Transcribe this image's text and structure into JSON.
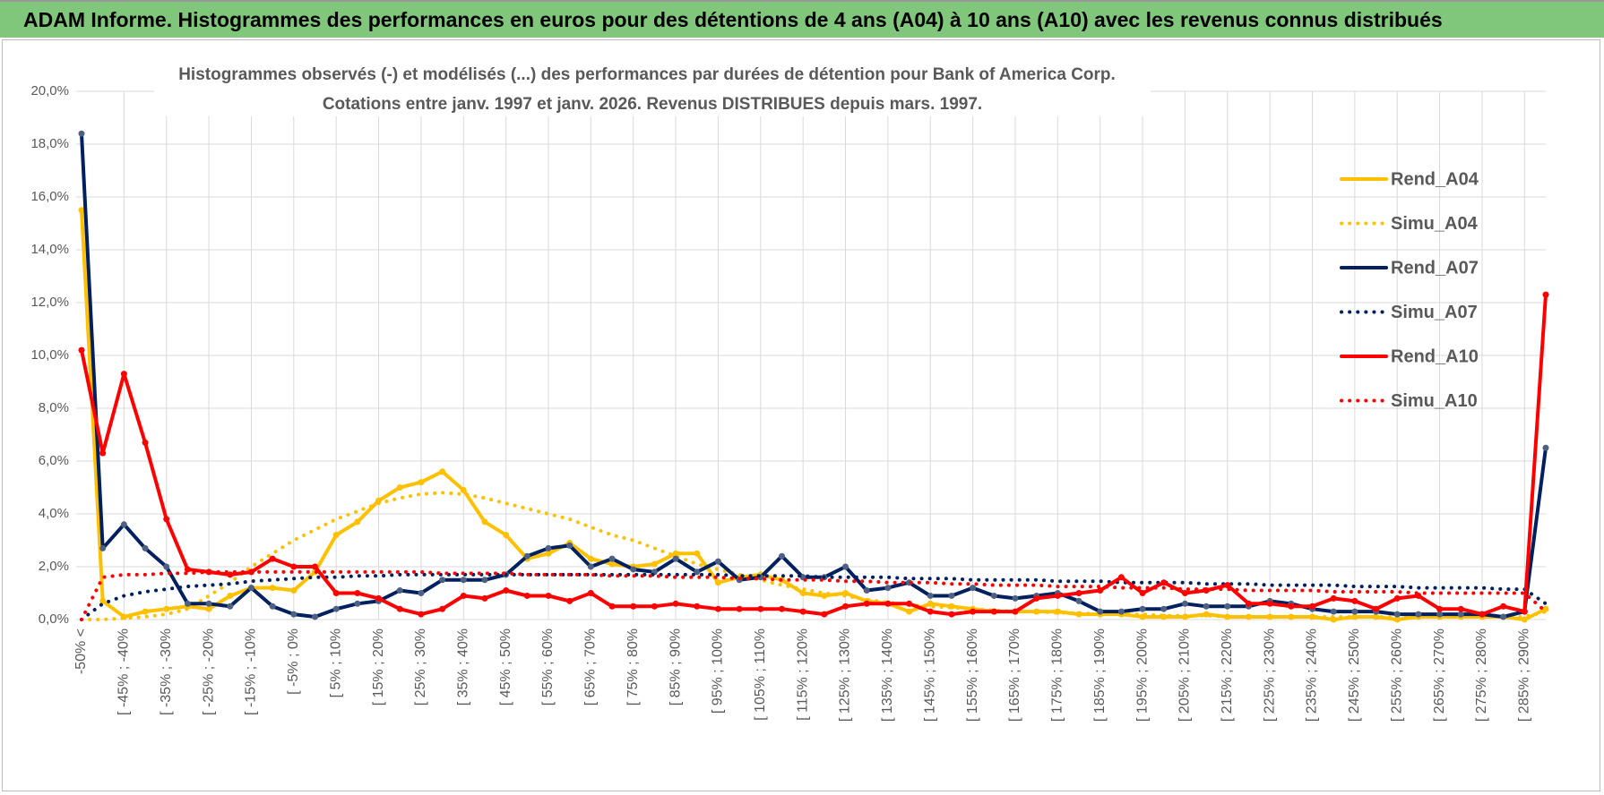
{
  "header": {
    "title": "ADAM Informe. Histogrammes des performances en euros pour des détentions de 4 ans (A04) à 10 ans (A10) avec les revenus connus distribués"
  },
  "chart_data": {
    "type": "line",
    "title": "Histogrammes observés (-) et modélisés (...) des performances par durées de détention pour Bank of America Corp.",
    "subtitle": "Cotations entre janv. 1997 et janv. 2026. Revenus DISTRIBUES depuis mars. 1997.",
    "categories": [
      "-50% <",
      null,
      "[ -45% ; -40%",
      null,
      "[ -35% ; -30%",
      null,
      "[ -25% ; -20%",
      null,
      "[ -15% ; -10%",
      null,
      "[ -5% ; 0%",
      null,
      "[ 5% ; 10%",
      null,
      "[ 15% ; 20%",
      null,
      "[ 25% ; 30%",
      null,
      "[ 35% ; 40%",
      null,
      "[ 45% ; 50%",
      null,
      "[ 55% ; 60%",
      null,
      "[ 65% ; 70%",
      null,
      "[ 75% ; 80%",
      null,
      "[ 85% ; 90%",
      null,
      "[ 95% ; 100%",
      null,
      "[ 105% ; 110%",
      null,
      "[ 115% ; 120%",
      null,
      "[ 125% ; 130%",
      null,
      "[ 135% ; 140%",
      null,
      "[ 145% ; 150%",
      null,
      "[ 155% ; 160%",
      null,
      "[ 165% ; 170%",
      null,
      "[ 175% ; 180%",
      null,
      "[ 185% ; 190%",
      null,
      "[ 195% ; 200%",
      null,
      "[ 205% ; 210%",
      null,
      "[ 215% ; 220%",
      null,
      "[ 225% ; 230%",
      null,
      "[ 235% ; 240%",
      null,
      "[ 245% ; 250%",
      null,
      "[ 255% ; 260%",
      null,
      "[ 265% ; 270%",
      null,
      "[ 275% ; 280%",
      null,
      "[ 285% ; 290%",
      null
    ],
    "ylim": [
      0,
      20
    ],
    "yticks": [
      {
        "value": 0,
        "label": "0,0%"
      },
      {
        "value": 2,
        "label": "2,0%"
      },
      {
        "value": 4,
        "label": "4,0%"
      },
      {
        "value": 6,
        "label": "6,0%"
      },
      {
        "value": 8,
        "label": "8,0%"
      },
      {
        "value": 10,
        "label": "10,0%"
      },
      {
        "value": 12,
        "label": "12,0%"
      },
      {
        "value": 14,
        "label": "14,0%"
      },
      {
        "value": 16,
        "label": "16,0%"
      },
      {
        "value": 18,
        "label": "18,0%"
      },
      {
        "value": 20,
        "label": "20,0%"
      }
    ],
    "grid": true,
    "legend": "right",
    "series": [
      {
        "name": "Rend_A04",
        "color": "#ffc000",
        "line_style": "solid",
        "values": [
          15.5,
          0.7,
          0.1,
          0.3,
          0.4,
          0.5,
          0.4,
          0.9,
          1.2,
          1.2,
          1.1,
          1.8,
          3.2,
          3.7,
          4.5,
          5.0,
          5.2,
          5.6,
          4.9,
          3.7,
          3.2,
          2.3,
          2.5,
          2.9,
          2.3,
          2.1,
          2.0,
          2.1,
          2.5,
          2.5,
          1.4,
          1.6,
          1.7,
          1.5,
          1.0,
          0.9,
          1.0,
          0.7,
          0.6,
          0.3,
          0.6,
          0.5,
          0.4,
          0.3,
          0.3,
          0.3,
          0.3,
          0.2,
          0.2,
          0.2,
          0.1,
          0.1,
          0.1,
          0.2,
          0.1,
          0.1,
          0.1,
          0.1,
          0.1,
          0.0,
          0.1,
          0.1,
          0.0,
          0.1,
          0.1,
          0.1,
          0.1,
          0.1,
          0.0,
          0.4
        ]
      },
      {
        "name": "Simu_A04",
        "color": "#ffc000",
        "line_style": "dotted",
        "values": [
          0,
          0,
          0.05,
          0.1,
          0.2,
          0.4,
          0.9,
          1.4,
          2.0,
          2.5,
          3.0,
          3.4,
          3.8,
          4.1,
          4.4,
          4.6,
          4.75,
          4.8,
          4.75,
          4.6,
          4.4,
          4.2,
          4.0,
          3.8,
          3.5,
          3.2,
          3.0,
          2.7,
          2.4,
          2.1,
          1.9,
          1.7,
          1.5,
          1.3,
          1.15,
          1.0,
          0.9,
          0.75,
          0.65,
          0.55,
          0.5,
          0.45,
          0.4,
          0.35,
          0.3,
          0.3,
          0.25,
          0.25,
          0.2,
          0.2,
          0.2,
          0.15,
          0.15,
          0.15,
          0.1,
          0.1,
          0.1,
          0.1,
          0.1,
          0.1,
          0.1,
          0.1,
          0.1,
          0.1,
          0.1,
          0.1,
          0.1,
          0.1,
          0.1,
          0.3
        ]
      },
      {
        "name": "Rend_A07",
        "color": "#002060",
        "line_style": "solid",
        "values": [
          18.4,
          2.7,
          3.6,
          2.7,
          2.0,
          0.6,
          0.6,
          0.5,
          1.2,
          0.5,
          0.2,
          0.1,
          0.4,
          0.6,
          0.7,
          1.1,
          1.0,
          1.5,
          1.5,
          1.5,
          1.7,
          2.4,
          2.7,
          2.8,
          2.0,
          2.3,
          1.9,
          1.8,
          2.3,
          1.8,
          2.2,
          1.5,
          1.6,
          2.4,
          1.6,
          1.6,
          2.0,
          1.1,
          1.2,
          1.4,
          0.9,
          0.9,
          1.2,
          0.9,
          0.8,
          0.9,
          1.0,
          0.7,
          0.3,
          0.3,
          0.4,
          0.4,
          0.6,
          0.5,
          0.5,
          0.5,
          0.7,
          0.6,
          0.4,
          0.3,
          0.3,
          0.3,
          0.2,
          0.2,
          0.2,
          0.2,
          0.2,
          0.1,
          0.3,
          6.5
        ]
      },
      {
        "name": "Simu_A07",
        "color": "#002060",
        "line_style": "dotted",
        "values": [
          0,
          0.6,
          0.9,
          1.05,
          1.15,
          1.25,
          1.3,
          1.35,
          1.45,
          1.5,
          1.55,
          1.6,
          1.6,
          1.65,
          1.65,
          1.7,
          1.7,
          1.7,
          1.7,
          1.7,
          1.7,
          1.7,
          1.7,
          1.7,
          1.7,
          1.7,
          1.7,
          1.7,
          1.7,
          1.7,
          1.7,
          1.65,
          1.65,
          1.65,
          1.65,
          1.6,
          1.6,
          1.6,
          1.6,
          1.55,
          1.55,
          1.55,
          1.5,
          1.5,
          1.5,
          1.5,
          1.45,
          1.45,
          1.45,
          1.4,
          1.4,
          1.4,
          1.4,
          1.35,
          1.35,
          1.35,
          1.3,
          1.3,
          1.3,
          1.3,
          1.25,
          1.25,
          1.25,
          1.2,
          1.2,
          1.2,
          1.2,
          1.15,
          1.15,
          0.6
        ]
      },
      {
        "name": "Rend_A10",
        "color": "#ff0000",
        "line_style": "solid",
        "values": [
          10.2,
          6.3,
          9.3,
          6.7,
          3.8,
          1.9,
          1.8,
          1.7,
          1.8,
          2.3,
          2.0,
          2.0,
          1.0,
          1.0,
          0.8,
          0.4,
          0.2,
          0.4,
          0.9,
          0.8,
          1.1,
          0.9,
          0.9,
          0.7,
          1.0,
          0.5,
          0.5,
          0.5,
          0.6,
          0.5,
          0.4,
          0.4,
          0.4,
          0.4,
          0.3,
          0.2,
          0.5,
          0.6,
          0.6,
          0.6,
          0.3,
          0.2,
          0.3,
          0.3,
          0.3,
          0.8,
          0.9,
          1.0,
          1.1,
          1.6,
          1.0,
          1.4,
          1.0,
          1.1,
          1.3,
          0.6,
          0.6,
          0.5,
          0.5,
          0.8,
          0.7,
          0.4,
          0.8,
          0.9,
          0.4,
          0.4,
          0.2,
          0.5,
          0.3,
          12.3
        ]
      },
      {
        "name": "Simu_A10",
        "color": "#ff0000",
        "line_style": "dotted",
        "values": [
          0,
          1.6,
          1.7,
          1.7,
          1.75,
          1.75,
          1.8,
          1.8,
          1.8,
          1.8,
          1.8,
          1.8,
          1.8,
          1.8,
          1.8,
          1.8,
          1.8,
          1.75,
          1.75,
          1.75,
          1.75,
          1.7,
          1.7,
          1.7,
          1.7,
          1.65,
          1.65,
          1.65,
          1.6,
          1.6,
          1.6,
          1.55,
          1.55,
          1.5,
          1.5,
          1.5,
          1.45,
          1.45,
          1.4,
          1.4,
          1.4,
          1.35,
          1.35,
          1.3,
          1.3,
          1.3,
          1.25,
          1.25,
          1.25,
          1.2,
          1.2,
          1.2,
          1.15,
          1.15,
          1.15,
          1.1,
          1.1,
          1.1,
          1.1,
          1.05,
          1.05,
          1.05,
          1.05,
          1.0,
          1.0,
          1.0,
          1.0,
          1.0,
          1.0,
          0.3
        ]
      }
    ]
  }
}
